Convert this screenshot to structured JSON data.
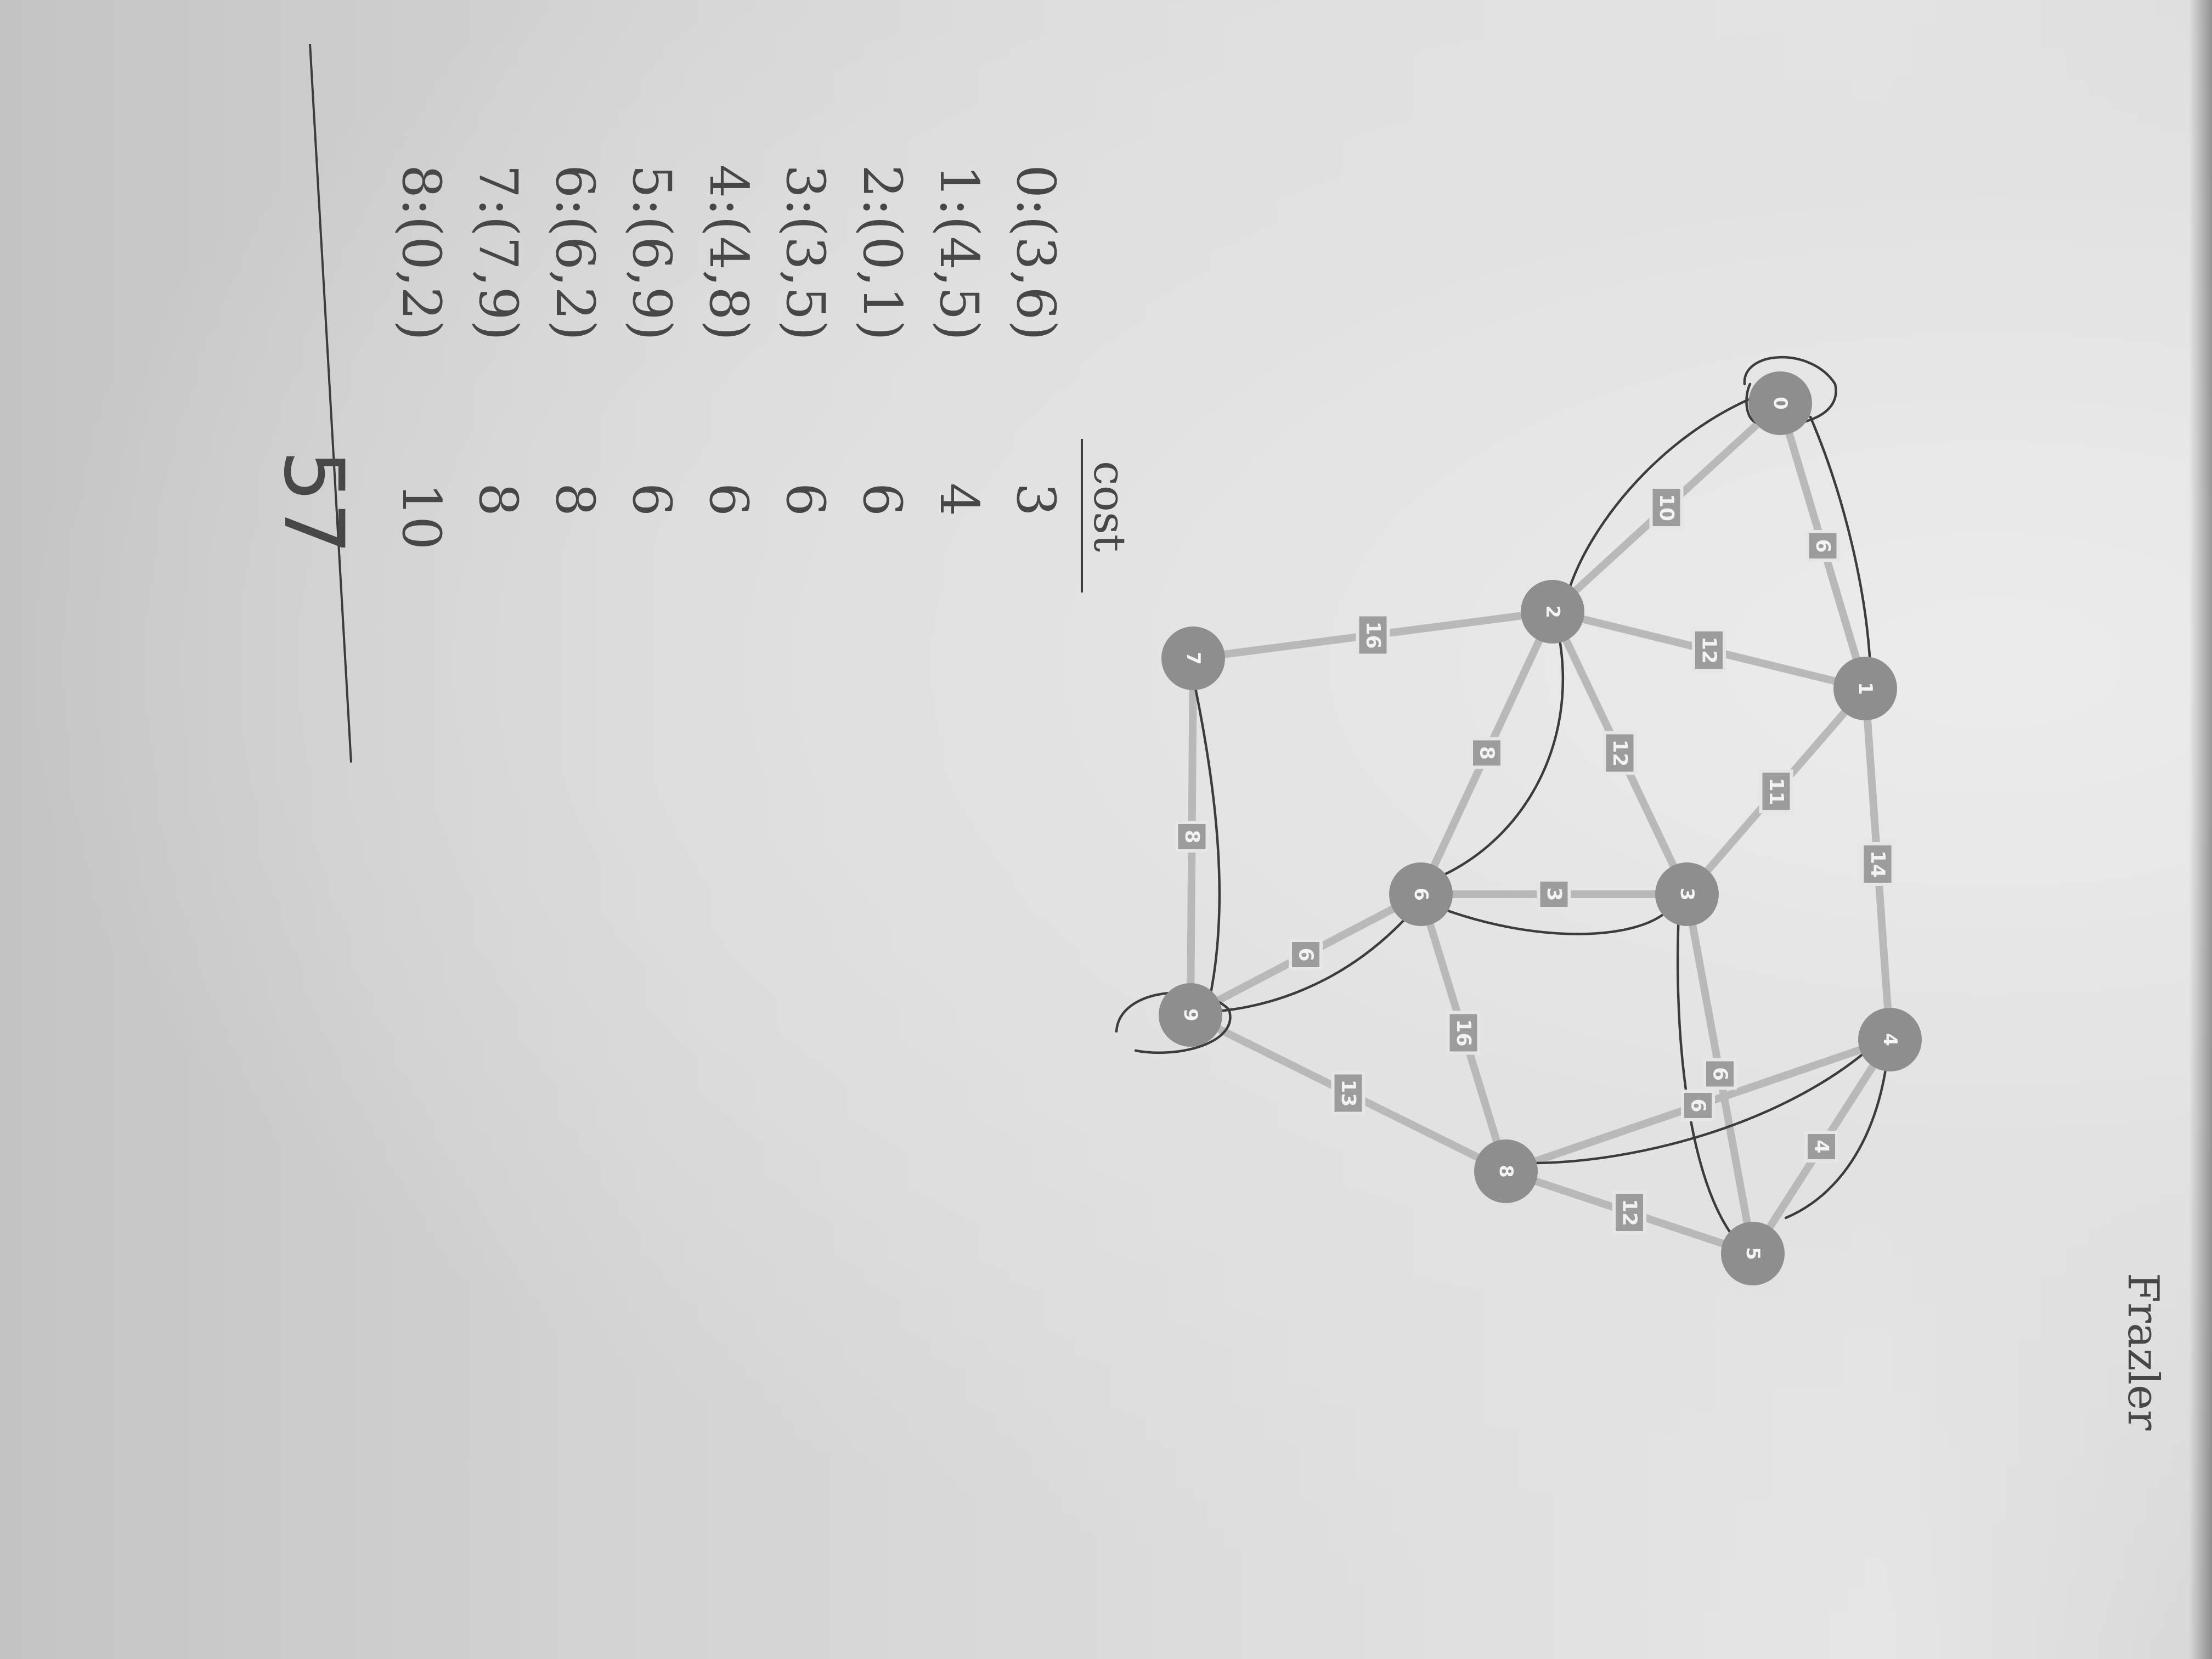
{
  "author": "Frazler",
  "graph": {
    "nodes": [
      {
        "id": "0",
        "label": "0"
      },
      {
        "id": "1",
        "label": "1"
      },
      {
        "id": "2",
        "label": "2"
      },
      {
        "id": "3",
        "label": "3"
      },
      {
        "id": "4",
        "label": "4"
      },
      {
        "id": "5",
        "label": "5"
      },
      {
        "id": "6",
        "label": "6"
      },
      {
        "id": "7",
        "label": "7"
      },
      {
        "id": "8",
        "label": "8"
      },
      {
        "id": "9",
        "label": "9"
      }
    ],
    "edges": [
      {
        "from": "0",
        "to": "1",
        "weight": "6"
      },
      {
        "from": "0",
        "to": "2",
        "weight": "10"
      },
      {
        "from": "2",
        "to": "1",
        "weight": "12"
      },
      {
        "from": "2",
        "to": "7",
        "weight": "16"
      },
      {
        "from": "2",
        "to": "6",
        "weight": "8"
      },
      {
        "from": "2",
        "to": "3",
        "weight": "12"
      },
      {
        "from": "1",
        "to": "3",
        "weight": "11"
      },
      {
        "from": "1",
        "to": "4",
        "weight": "14"
      },
      {
        "from": "7",
        "to": "9",
        "weight": "8"
      },
      {
        "from": "6",
        "to": "3",
        "weight": "3"
      },
      {
        "from": "6",
        "to": "9",
        "weight": "6"
      },
      {
        "from": "6",
        "to": "8",
        "weight": "16"
      },
      {
        "from": "9",
        "to": "8",
        "weight": "13"
      },
      {
        "from": "3",
        "to": "5",
        "weight": "6"
      },
      {
        "from": "8",
        "to": "4",
        "weight": "6"
      },
      {
        "from": "4",
        "to": "5",
        "weight": "4"
      },
      {
        "from": "8",
        "to": "5",
        "weight": "12"
      }
    ]
  },
  "notes": {
    "cost_header": "cost",
    "rows": [
      {
        "pair": "0:(3,6)",
        "cost": "3"
      },
      {
        "pair": "1:(4,5)",
        "cost": "4"
      },
      {
        "pair": "2:(0,1)",
        "cost": "6"
      },
      {
        "pair": "3:(3,5)",
        "cost": "6"
      },
      {
        "pair": "4:(4,8)",
        "cost": "6"
      },
      {
        "pair": "5:(6,9)",
        "cost": "6"
      },
      {
        "pair": "6:(6,2)",
        "cost": "8"
      },
      {
        "pair": "7:(7,9)",
        "cost": "8"
      },
      {
        "pair": "8:(0,2)",
        "cost": "10"
      }
    ],
    "total": "57"
  }
}
